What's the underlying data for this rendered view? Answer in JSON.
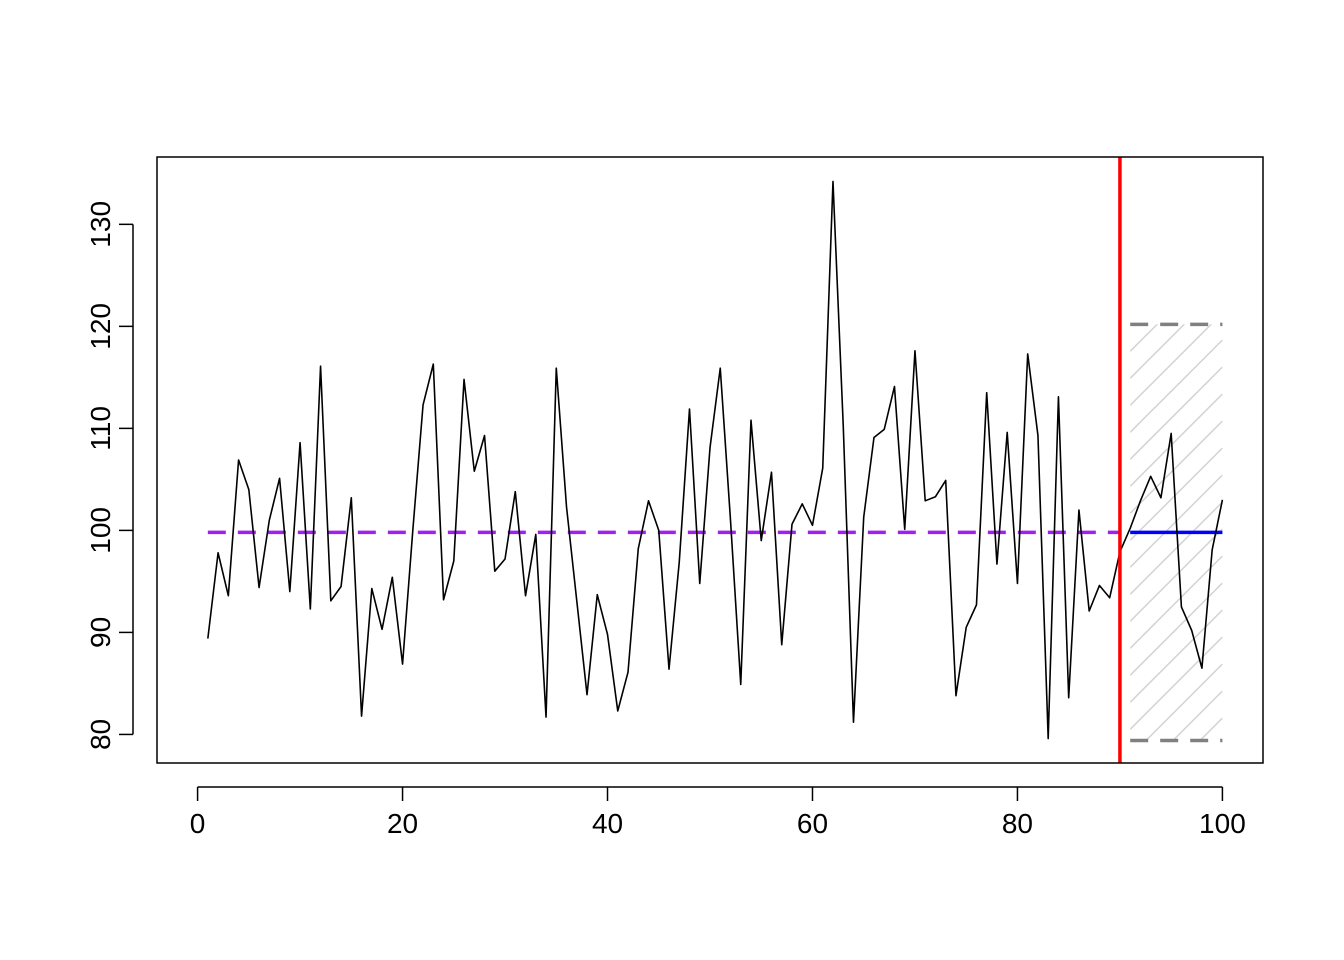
{
  "chart_data": {
    "type": "line",
    "title": "",
    "xlabel": "",
    "ylabel": "",
    "xlim": [
      -3.96,
      103.96
    ],
    "ylim": [
      77.2,
      136.6
    ],
    "x_ticks": [
      0,
      20,
      40,
      60,
      80,
      100
    ],
    "y_ticks": [
      80,
      90,
      100,
      110,
      120,
      130
    ],
    "grid": false,
    "legend": "none",
    "series": [
      {
        "x": [
          1,
          2,
          3,
          4,
          5,
          6,
          7,
          8,
          9,
          10,
          11,
          12,
          13,
          14,
          15,
          16,
          17,
          18,
          19,
          20,
          21,
          22,
          23,
          24,
          25,
          26,
          27,
          28,
          29,
          30,
          31,
          32,
          33,
          34,
          35,
          36,
          37,
          38,
          39,
          40,
          41,
          42,
          43,
          44,
          45,
          46,
          47,
          48,
          49,
          50,
          51,
          52,
          53,
          54,
          55,
          56,
          57,
          58,
          59,
          60,
          61,
          62,
          63,
          64,
          65,
          66,
          67,
          68,
          69,
          70,
          71,
          72,
          73,
          74,
          75,
          76,
          77,
          78,
          79,
          80,
          81,
          82,
          83,
          84,
          85,
          86,
          87,
          88,
          89,
          90,
          91,
          92,
          93,
          94,
          95,
          96,
          97,
          98,
          99,
          100
        ],
        "values": [
          89.4,
          97.8,
          93.6,
          106.9,
          104.0,
          94.4,
          101.0,
          105.1,
          94.0,
          108.6,
          92.3,
          116.1,
          93.1,
          94.5,
          103.2,
          81.8,
          94.3,
          90.3,
          95.4,
          86.9,
          100.0,
          112.3,
          116.3,
          93.2,
          97.0,
          114.8,
          105.8,
          109.3,
          96.0,
          97.2,
          103.8,
          93.6,
          99.6,
          81.7,
          115.9,
          102.3,
          93.1,
          83.9,
          93.7,
          89.8,
          82.3,
          86.1,
          98.2,
          102.9,
          100.0,
          86.4,
          96.9,
          111.9,
          94.8,
          108.1,
          115.9,
          101.0,
          84.9,
          110.8,
          99.0,
          105.7,
          88.8,
          100.6,
          102.6,
          100.5,
          106.1,
          134.2,
          110.3,
          81.2,
          101.3,
          109.1,
          109.9,
          114.1,
          100.1,
          117.6,
          102.9,
          103.3,
          104.9,
          83.8,
          90.5,
          92.7,
          113.5,
          96.7,
          109.6,
          94.8,
          117.3,
          109.3,
          79.6,
          113.1,
          83.6,
          102.0,
          92.1,
          94.6,
          93.4,
          97.9,
          100.2,
          102.9,
          105.3,
          103.2,
          109.5,
          92.5,
          90.2,
          86.5,
          98.1,
          103.0
        ],
        "color": "#000000"
      }
    ],
    "reference_lines": [
      {
        "type": "horizontal",
        "y": 99.8,
        "x_range": [
          1,
          90
        ],
        "style": "dashed",
        "color": "#a020f0"
      },
      {
        "type": "vertical",
        "x": 90,
        "style": "solid",
        "color": "#ff0000"
      },
      {
        "type": "horizontal",
        "y": 99.8,
        "x_range": [
          91,
          100
        ],
        "style": "solid",
        "color": "#0000ff"
      },
      {
        "type": "horizontal",
        "y": 120.2,
        "x_range": [
          91,
          100
        ],
        "style": "dashed",
        "color": "#808080"
      },
      {
        "type": "horizontal",
        "y": 79.4,
        "x_range": [
          91,
          100
        ],
        "style": "dashed",
        "color": "#808080"
      }
    ],
    "band": {
      "x_range": [
        91,
        100
      ],
      "y_range": [
        79.4,
        120.2
      ],
      "fill": "hatched",
      "color": "#d3d3d3"
    }
  }
}
